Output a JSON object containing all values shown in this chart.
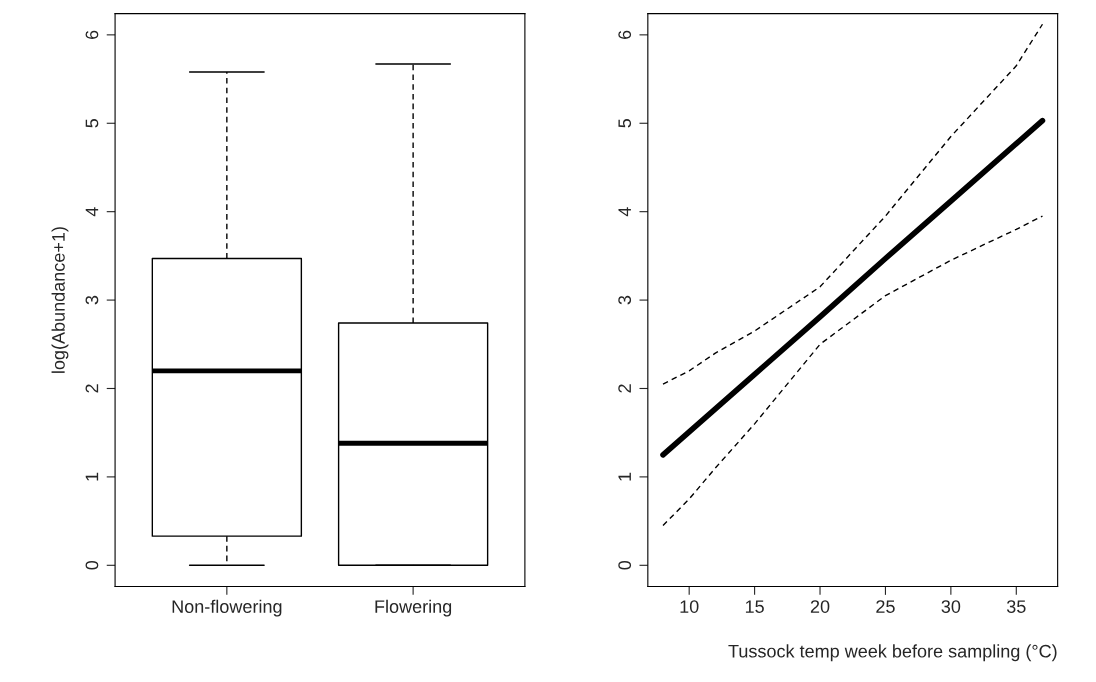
{
  "chart_data": [
    {
      "type": "box",
      "ylabel": "log(Abundance+1)",
      "categories": [
        "Non-flowering",
        "Flowering"
      ],
      "ylim": [
        -0.24,
        6.24
      ],
      "yticks": [
        0,
        1,
        2,
        3,
        4,
        5,
        6
      ],
      "boxes": [
        {
          "low": 0,
          "q1": 0.33,
          "median": 2.2,
          "q3": 3.47,
          "high": 5.58
        },
        {
          "low": 0,
          "q1": 0,
          "median": 1.38,
          "q3": 2.74,
          "high": 5.67
        }
      ],
      "grid": false
    },
    {
      "type": "line",
      "xlabel": "Tussock temp week before sampling (°C)",
      "xlim": [
        6.84,
        38.16
      ],
      "xticks": [
        10,
        15,
        20,
        25,
        30,
        35
      ],
      "ylim": [
        -0.24,
        6.24
      ],
      "yticks": [
        0,
        1,
        2,
        3,
        4,
        5,
        6
      ],
      "grid": false,
      "series": [
        {
          "color": "#000000",
          "line_style": "solid",
          "x": [
            8,
            10,
            12,
            15,
            20,
            25,
            30,
            35,
            37
          ],
          "values": [
            1.25,
            1.51,
            1.77,
            2.16,
            2.81,
            3.47,
            4.12,
            4.77,
            5.03
          ]
        },
        {
          "color": "#000000",
          "line_style": "dashed",
          "x": [
            8,
            10,
            12,
            15,
            20,
            25,
            30,
            35,
            37
          ],
          "values": [
            0.45,
            0.75,
            1.1,
            1.6,
            2.5,
            3.05,
            3.45,
            3.8,
            3.95
          ]
        },
        {
          "color": "#000000",
          "line_style": "dashed",
          "x": [
            8,
            10,
            12,
            15,
            20,
            25,
            30,
            35,
            37
          ],
          "values": [
            2.05,
            2.2,
            2.4,
            2.65,
            3.15,
            3.95,
            4.85,
            5.65,
            6.12
          ]
        }
      ]
    }
  ]
}
